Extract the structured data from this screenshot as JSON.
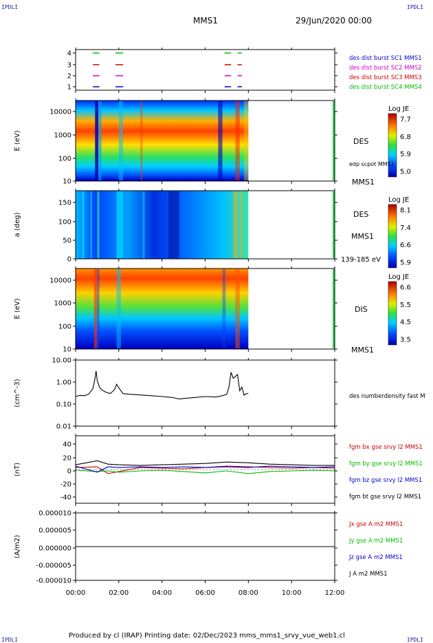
{
  "header": {
    "corner_left": "IPDLI",
    "corner_right": "IPDLI",
    "spacecraft": "MMS1",
    "datetime": "29/Jun/2020 00:00"
  },
  "footer": {
    "text": "Produced by cl (IRAP)   Printing date: 02/Dec/2023   mms_mms1_srvy_vue_web1.cl",
    "corner_left": "IPDLI",
    "corner_right": "IPDLI"
  },
  "chart_data": [
    {
      "type": "scatter",
      "name": "burst",
      "yticks": [
        "1",
        "2",
        "3",
        "4"
      ],
      "legend": [
        {
          "text": "des dist burst SC1 MMS1",
          "color": "#0000cc"
        },
        {
          "text": "des dist burst SC2 MMS2",
          "color": "#cc00cc"
        },
        {
          "text": "des dist burst SC3 MMS3",
          "color": "#cc0000"
        },
        {
          "text": "des dist burst SC4 MMS4",
          "color": "#00bb00"
        }
      ],
      "intervals_hours": [
        [
          0.8,
          1.1
        ],
        [
          1.85,
          2.2
        ],
        [
          6.9,
          7.2
        ],
        [
          7.5,
          7.7
        ]
      ],
      "colors": [
        "#0000cc",
        "#cc00cc",
        "#cc0000",
        "#00bb00"
      ]
    },
    {
      "type": "heatmap",
      "name": "des-energy",
      "ylabel": "E (eV)",
      "yticks": [
        "10000",
        "1000",
        "100",
        "10"
      ],
      "yrange": [
        10,
        30000
      ],
      "ylog": true,
      "labels": [
        "DES",
        "edp scpot MMS1",
        "MMS1"
      ],
      "colorbar": {
        "title": "Log JE",
        "ticks": [
          "7.7",
          "6.8",
          "5.9",
          "5.0"
        ]
      }
    },
    {
      "type": "heatmap",
      "name": "des-pitch",
      "ylabel": "a (deg)",
      "yticks": [
        "150",
        "100",
        "50",
        "0"
      ],
      "yrange": [
        0,
        180
      ],
      "labels": [
        "DES",
        "MMS1",
        "139-185 eV"
      ],
      "colorbar": {
        "title": "Log JE",
        "ticks": [
          "8.1",
          "7.4",
          "6.6",
          "5.9"
        ]
      }
    },
    {
      "type": "heatmap",
      "name": "dis-energy",
      "ylabel": "E (eV)",
      "yticks": [
        "10000",
        "1000",
        "100",
        "10"
      ],
      "yrange": [
        10,
        30000
      ],
      "ylog": true,
      "labels": [
        "DIS",
        "MMS1"
      ],
      "colorbar": {
        "title": "Log JE",
        "ticks": [
          "6.6",
          "5.5",
          "4.5",
          "3.5"
        ]
      }
    },
    {
      "type": "line",
      "name": "density",
      "ylabel": "(cm^-3)",
      "yticks": [
        "10.00",
        "1.00",
        "0.10",
        "0.01"
      ],
      "ylim": [
        0.01,
        10
      ],
      "ylog": true,
      "series": [
        {
          "name": "des numberdensity fast M",
          "color": "#000000",
          "x": [
            0,
            0.2,
            0.4,
            0.6,
            0.8,
            0.9,
            0.95,
            1.0,
            1.1,
            1.2,
            1.4,
            1.6,
            1.8,
            1.9,
            2.0,
            2.2,
            2.5,
            3.0,
            3.5,
            4.0,
            4.5,
            4.8,
            5.0,
            5.5,
            6.0,
            6.5,
            6.8,
            7.0,
            7.1,
            7.2,
            7.3,
            7.4,
            7.5,
            7.6,
            7.7,
            7.8,
            7.9,
            8.0
          ],
          "y": [
            0.22,
            0.25,
            0.24,
            0.28,
            0.5,
            1.5,
            3.2,
            1.2,
            0.6,
            0.45,
            0.35,
            0.3,
            0.45,
            0.8,
            0.55,
            0.3,
            0.28,
            0.26,
            0.24,
            0.22,
            0.2,
            0.17,
            0.18,
            0.2,
            0.22,
            0.21,
            0.24,
            0.28,
            0.6,
            2.8,
            1.5,
            1.8,
            2.2,
            0.4,
            0.6,
            0.25,
            0.3,
            0.3
          ]
        }
      ]
    },
    {
      "type": "line",
      "name": "magnetic-field",
      "ylabel": "(nT)",
      "yticks": [
        "40",
        "20",
        "0",
        "-20",
        "-40"
      ],
      "ylim": [
        -50,
        50
      ],
      "series": [
        {
          "name": "fgm bx gse srvy l2 MMS1",
          "color": "#cc0000",
          "x": [
            0,
            1,
            1.5,
            2,
            3,
            4,
            5,
            6,
            7,
            8,
            9,
            10,
            11,
            12
          ],
          "y": [
            3,
            4,
            -6,
            -3,
            3,
            2,
            1,
            3,
            5,
            4,
            3,
            2,
            3,
            2
          ]
        },
        {
          "name": "fgm by gse srvy l2 MMS1",
          "color": "#00bb00",
          "x": [
            0,
            1,
            1.5,
            2,
            3,
            4,
            5,
            6,
            7,
            8,
            9,
            10,
            11,
            12
          ],
          "y": [
            -1,
            -3,
            -2,
            -4,
            -2,
            -1,
            -3,
            -5,
            -2,
            -6,
            -3,
            -2,
            -1,
            -2
          ]
        },
        {
          "name": "fgm bz gse srvy l2 MMS1",
          "color": "#0000cc",
          "x": [
            0,
            1,
            1.5,
            2,
            3,
            4,
            5,
            6,
            7,
            8,
            9,
            10,
            11,
            12
          ],
          "y": [
            5,
            -4,
            4,
            3,
            4,
            3,
            4,
            3,
            4,
            3,
            5,
            4,
            3,
            4
          ]
        },
        {
          "name": "fgm bt gse srvy l2 MMS1",
          "color": "#000000",
          "x": [
            0,
            1,
            1.5,
            2,
            3,
            4,
            5,
            6,
            7,
            8,
            9,
            10,
            11,
            12
          ],
          "y": [
            7,
            13,
            8,
            7,
            6,
            7,
            8,
            9,
            11,
            10,
            8,
            7,
            6,
            6
          ]
        }
      ]
    },
    {
      "type": "line",
      "name": "current-density",
      "ylabel": "(A/m2)",
      "yticks": [
        "0.000010",
        "0.000005",
        "0.000000",
        "-0.000005",
        "-0.000010"
      ],
      "ylim": [
        -1e-05,
        1e-05
      ],
      "series": [
        {
          "name": "Jx gse A m2 MMS1",
          "color": "#cc0000",
          "x": [
            0,
            12
          ],
          "y": [
            0,
            0
          ]
        },
        {
          "name": "Jy gse A m2 MMS1",
          "color": "#00bb00",
          "x": [
            0,
            12
          ],
          "y": [
            0,
            0
          ]
        },
        {
          "name": "Jz gse A m2 MMS1",
          "color": "#0000cc",
          "x": [
            0,
            12
          ],
          "y": [
            0,
            0
          ]
        },
        {
          "name": "J A m2 MMS1",
          "color": "#000000",
          "x": [
            0,
            12
          ],
          "y": [
            0,
            0
          ]
        }
      ]
    }
  ],
  "xaxis": {
    "ticks": [
      "00:00",
      "02:00",
      "04:00",
      "06:00",
      "08:00",
      "10:00",
      "12:00"
    ],
    "range_hours": [
      0,
      12
    ],
    "data_end_hours": 8
  }
}
